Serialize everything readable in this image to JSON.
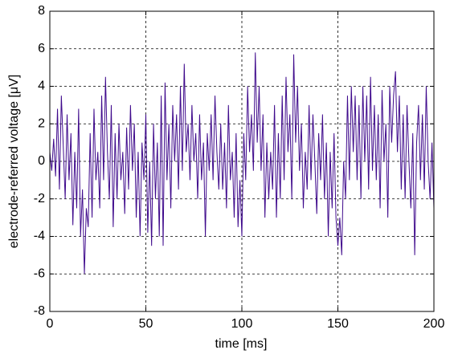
{
  "chart_data": {
    "type": "line",
    "xlabel": "time [ms]",
    "ylabel": "electrode-referred voltage [μV]",
    "xlim": [
      0,
      200
    ],
    "xticks": [
      0,
      50,
      100,
      150,
      200
    ],
    "ylim": [
      -8,
      8
    ],
    "yticks": [
      -8,
      -6,
      -4,
      -2,
      0,
      2,
      4,
      6,
      8
    ],
    "grid": true,
    "x": [
      0,
      1,
      2,
      3,
      4,
      5,
      6,
      7,
      8,
      9,
      10,
      11,
      12,
      13,
      14,
      15,
      16,
      17,
      18,
      19,
      20,
      21,
      22,
      23,
      24,
      25,
      26,
      27,
      28,
      29,
      30,
      31,
      32,
      33,
      34,
      35,
      36,
      37,
      38,
      39,
      40,
      41,
      42,
      43,
      44,
      45,
      46,
      47,
      48,
      49,
      50,
      51,
      52,
      53,
      54,
      55,
      56,
      57,
      58,
      59,
      60,
      61,
      62,
      63,
      64,
      65,
      66,
      67,
      68,
      69,
      70,
      71,
      72,
      73,
      74,
      75,
      76,
      77,
      78,
      79,
      80,
      81,
      82,
      83,
      84,
      85,
      86,
      87,
      88,
      89,
      90,
      91,
      92,
      93,
      94,
      95,
      96,
      97,
      98,
      99,
      100,
      101,
      102,
      103,
      104,
      105,
      106,
      107,
      108,
      109,
      110,
      111,
      112,
      113,
      114,
      115,
      116,
      117,
      118,
      119,
      120,
      121,
      122,
      123,
      124,
      125,
      126,
      127,
      128,
      129,
      130,
      131,
      132,
      133,
      134,
      135,
      136,
      137,
      138,
      139,
      140,
      141,
      142,
      143,
      144,
      145,
      146,
      147,
      148,
      149,
      150,
      151,
      152,
      153,
      154,
      155,
      156,
      157,
      158,
      159,
      160,
      161,
      162,
      163,
      164,
      165,
      166,
      167,
      168,
      169,
      170,
      171,
      172,
      173,
      174,
      175,
      176,
      177,
      178,
      179,
      180,
      181,
      182,
      183,
      184,
      185,
      186,
      187,
      188,
      189,
      190,
      191,
      192,
      193,
      194,
      195,
      196,
      197,
      198,
      199,
      200
    ],
    "series": [
      {
        "color": "#3f0a8c",
        "values": [
          0.5,
          -0.5,
          1.2,
          -0.8,
          2.8,
          -1.5,
          3.5,
          0.8,
          -2,
          2.5,
          -1,
          1.5,
          -3.4,
          0.5,
          -2.5,
          2.8,
          -4,
          -1.5,
          -6,
          -2.5,
          -3.5,
          1.5,
          -3,
          2.8,
          -1,
          0.5,
          -2.5,
          3.5,
          -1,
          4.5,
          0.5,
          -2,
          3,
          -3.5,
          1.5,
          -2,
          2,
          -1,
          0.5,
          -2.8,
          1.8,
          -1.5,
          3,
          -0.5,
          2,
          -3,
          0.5,
          -4,
          1,
          -1,
          2.5,
          -3.8,
          0,
          -4.5,
          2,
          -2,
          1,
          -4,
          3.5,
          -4.5,
          4.2,
          -1,
          2,
          -2.5,
          3,
          0,
          2.5,
          -1.5,
          4,
          -0.5,
          5.2,
          0.5,
          2,
          -1,
          3,
          0,
          1.5,
          -2,
          2.5,
          -1,
          1,
          -4,
          1.5,
          -0.5,
          2.5,
          -1,
          3.5,
          0.5,
          -1.5,
          2,
          -1.5,
          1,
          -2.5,
          3,
          -1,
          0.5,
          -3,
          1.5,
          -3.5,
          -1,
          -4,
          1.5,
          -1,
          4,
          0.5,
          2.5,
          -0.5,
          5.8,
          1,
          4,
          -0.5,
          2.5,
          -3,
          1,
          -2,
          0.5,
          -1.5,
          3,
          -3,
          1.5,
          -2,
          3.5,
          -1,
          4.5,
          0.5,
          2.5,
          -2,
          5.7,
          1,
          4,
          -0.5,
          2,
          -2.5,
          0.5,
          -1.5,
          3,
          -1,
          2.5,
          0,
          -2.8,
          1.5,
          -1,
          2.5,
          -2,
          1,
          -4,
          0.5,
          -2.5,
          1.5,
          -3,
          -4.5,
          -3,
          -5,
          0,
          -2,
          3.5,
          -1,
          4,
          0.5,
          3.5,
          -1,
          3,
          -2,
          4,
          0,
          3.5,
          -1.5,
          4.5,
          -0.5,
          3,
          -1,
          2.5,
          -2.5,
          3.8,
          0,
          2,
          -3,
          4,
          1,
          3.5,
          4.8,
          0.5,
          3.5,
          -1.5,
          2.5,
          -2,
          3,
          0,
          -2.5,
          1.5,
          -5,
          1,
          3,
          -1,
          2.5,
          -1.5,
          4,
          0,
          -2,
          1,
          -2.5
        ]
      }
    ]
  }
}
